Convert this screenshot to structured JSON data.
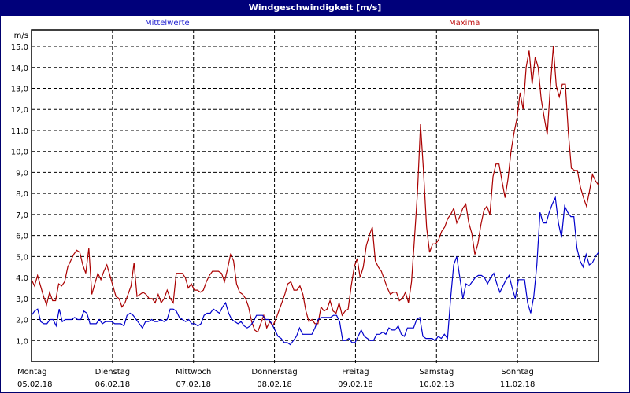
{
  "window": {
    "title": "Windgeschwindigkeit [m/s]"
  },
  "legend": {
    "mean_label": "Mittelwerte",
    "max_label": "Maxima"
  },
  "colors": {
    "titlebar": "#00007a",
    "mean": "#0000cc",
    "max": "#aa0000",
    "grid": "#000000"
  },
  "axis": {
    "unit": "m/s"
  },
  "chart_data": {
    "type": "line",
    "title": "Windgeschwindigkeit [m/s]",
    "xlabel": "",
    "ylabel": "m/s",
    "ylim": [
      0,
      15.5
    ],
    "yticks": [
      "1,0",
      "2,0",
      "3,0",
      "4,0",
      "5,0",
      "6,0",
      "7,0",
      "8,0",
      "9,0",
      "10,0",
      "11,0",
      "12,0",
      "13,0",
      "14,0",
      "15,0"
    ],
    "xticks": [
      {
        "day": "Montag",
        "date": "05.02.18"
      },
      {
        "day": "Dienstag",
        "date": "06.02.18"
      },
      {
        "day": "Mittwoch",
        "date": "07.02.18"
      },
      {
        "day": "Donnerstag",
        "date": "08.02.18"
      },
      {
        "day": "Freitag",
        "date": "09.02.18"
      },
      {
        "day": "Samstag",
        "date": "10.02.18"
      },
      {
        "day": "Sonntag",
        "date": "11.02.18"
      }
    ],
    "grid": true,
    "legend_position": "top",
    "series": [
      {
        "name": "Mittelwerte",
        "color": "#0000cc",
        "values": [
          2.2,
          2.4,
          2.5,
          1.9,
          1.8,
          1.8,
          2.0,
          2.0,
          1.7,
          2.5,
          1.9,
          2.0,
          2.0,
          2.0,
          2.1,
          2.0,
          2.0,
          2.4,
          2.3,
          1.8,
          1.8,
          1.8,
          2.0,
          1.8,
          1.9,
          1.9,
          1.9,
          1.8,
          1.8,
          1.8,
          1.7,
          2.2,
          2.3,
          2.2,
          2.0,
          1.8,
          1.6,
          1.9,
          1.9,
          2.0,
          1.9,
          1.9,
          2.0,
          1.9,
          2.0,
          2.5,
          2.5,
          2.4,
          2.1,
          2.0,
          1.9,
          2.0,
          1.8,
          1.8,
          1.7,
          1.8,
          2.2,
          2.3,
          2.3,
          2.5,
          2.4,
          2.3,
          2.6,
          2.8,
          2.3,
          2.0,
          1.9,
          1.8,
          1.9,
          1.7,
          1.6,
          1.7,
          1.9,
          2.2,
          2.2,
          2.2,
          2.0,
          2.0,
          1.8,
          1.5,
          1.2,
          1.1,
          0.9,
          0.9,
          0.8,
          1.0,
          1.2,
          1.6,
          1.3,
          1.3,
          1.3,
          1.3,
          1.6,
          2.0,
          2.1,
          2.1,
          2.1,
          2.1,
          2.2,
          2.2,
          1.9,
          1.0,
          1.0,
          1.1,
          0.9,
          0.9,
          1.2,
          1.5,
          1.2,
          1.1,
          1.0,
          1.0,
          1.3,
          1.3,
          1.4,
          1.3,
          1.6,
          1.5,
          1.5,
          1.7,
          1.3,
          1.2,
          1.6,
          1.6,
          1.6,
          2.0,
          2.1,
          1.2,
          1.1,
          1.1,
          1.1,
          1.0,
          1.2,
          1.1,
          1.3,
          1.1,
          3.0,
          4.6,
          5.0,
          4.0,
          3.0,
          3.7,
          3.6,
          3.8,
          4.0,
          4.1,
          4.1,
          4.0,
          3.7,
          4.0,
          4.2,
          3.7,
          3.3,
          3.6,
          3.9,
          4.1,
          3.5,
          3.0,
          3.9,
          3.9,
          3.9,
          2.8,
          2.3,
          3.1,
          4.6,
          7.1,
          6.6,
          6.6,
          7.1,
          7.5,
          7.8,
          6.6,
          5.9,
          7.4,
          7.1,
          6.9,
          6.9,
          5.4,
          4.8,
          4.5,
          5.1,
          4.6,
          4.7,
          5.0,
          5.2
        ]
      },
      {
        "name": "Maxima",
        "color": "#aa0000",
        "values": [
          3.9,
          3.6,
          4.1,
          3.6,
          3.1,
          2.7,
          3.3,
          2.9,
          2.9,
          3.7,
          3.6,
          3.8,
          4.5,
          4.8,
          5.1,
          5.3,
          5.2,
          4.6,
          4.2,
          5.4,
          3.2,
          3.7,
          4.2,
          3.9,
          4.3,
          4.6,
          4.1,
          3.6,
          3.1,
          3.0,
          2.6,
          2.8,
          3.2,
          3.6,
          4.7,
          3.1,
          3.2,
          3.3,
          3.2,
          3.0,
          3.0,
          2.8,
          3.2,
          2.8,
          3.0,
          3.4,
          3.0,
          2.8,
          4.2,
          4.2,
          4.2,
          4.0,
          3.5,
          3.7,
          3.4,
          3.4,
          3.3,
          3.4,
          3.8,
          4.1,
          4.3,
          4.3,
          4.3,
          4.2,
          3.8,
          4.4,
          5.1,
          4.8,
          3.7,
          3.3,
          3.2,
          3.0,
          2.6,
          1.9,
          1.5,
          1.4,
          1.8,
          2.2,
          1.6,
          1.9,
          1.7,
          2.0,
          2.4,
          2.8,
          3.2,
          3.7,
          3.8,
          3.4,
          3.4,
          3.6,
          3.2,
          2.4,
          1.9,
          2.0,
          1.8,
          1.8,
          2.6,
          2.4,
          2.5,
          2.9,
          2.4,
          2.3,
          2.8,
          2.2,
          2.4,
          2.5,
          3.6,
          4.5,
          4.9,
          4.0,
          4.5,
          5.5,
          6.0,
          6.4,
          4.8,
          4.5,
          4.3,
          3.9,
          3.5,
          3.2,
          3.3,
          3.3,
          2.9,
          3.0,
          3.3,
          2.8,
          3.8,
          5.9,
          8.1,
          11.3,
          9.0,
          6.4,
          5.2,
          5.6,
          5.6,
          5.8,
          6.2,
          6.4,
          6.8,
          7.0,
          7.3,
          6.6,
          6.9,
          7.3,
          7.5,
          6.6,
          6.1,
          5.1,
          5.6,
          6.5,
          7.2,
          7.4,
          7.0,
          8.8,
          9.4,
          9.4,
          8.6,
          7.8,
          8.7,
          10.0,
          10.9,
          11.6,
          12.8,
          12.0,
          14.0,
          14.8,
          13.2,
          14.5,
          14.0,
          12.5,
          11.6,
          10.8,
          13.0,
          15.0,
          13.1,
          12.6,
          13.2,
          13.2,
          10.9,
          9.2,
          9.1,
          9.1,
          8.3,
          7.8,
          7.4,
          8.1,
          8.9,
          8.6,
          8.4
        ]
      }
    ]
  }
}
